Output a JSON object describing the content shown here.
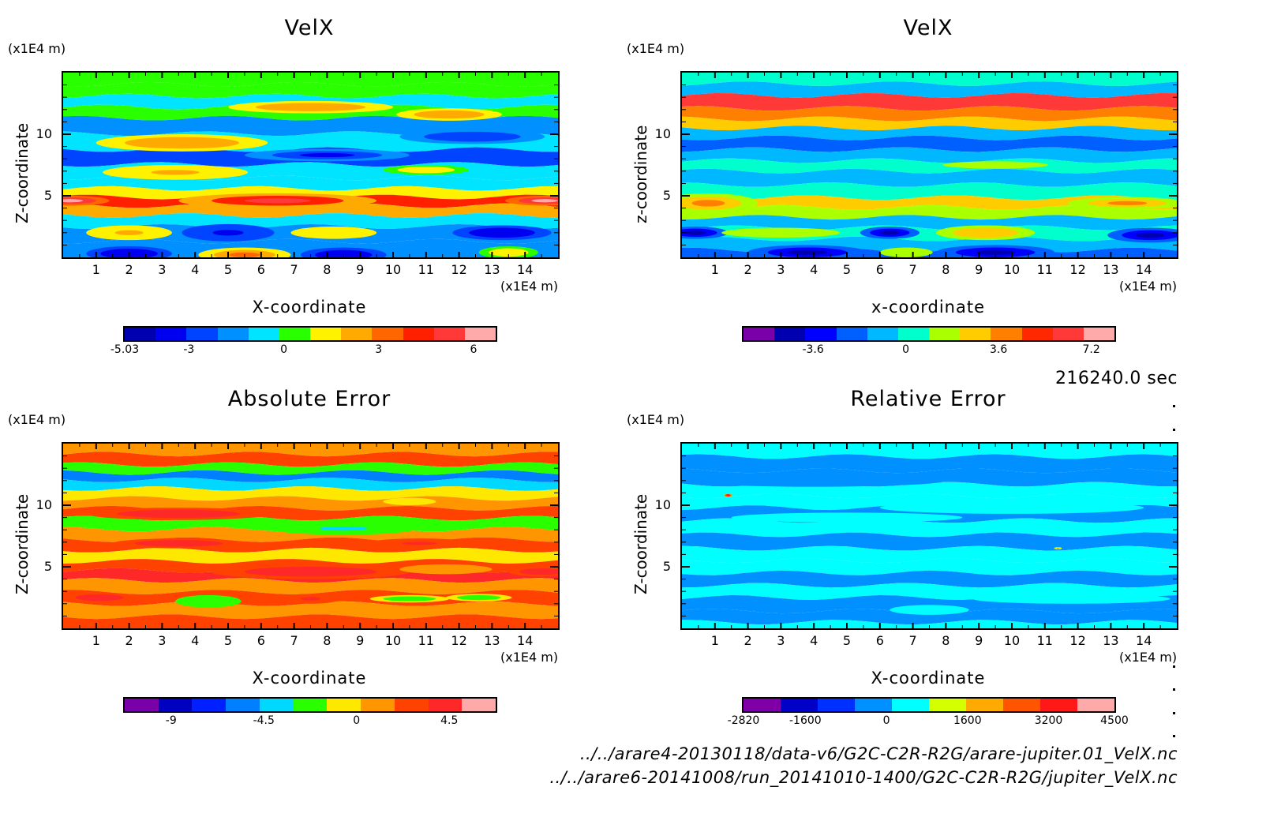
{
  "chart_data": [
    {
      "type": "heatmap",
      "panel": "top-left",
      "title": "VelX",
      "xlabel": "X-coordinate",
      "ylabel": "Z-coordinate",
      "x_unit": "(x1E4 m)",
      "y_unit": "(x1E4 m)",
      "xlim": [
        0,
        15
      ],
      "ylim": [
        0,
        15
      ],
      "x_ticks": [
        "1",
        "2",
        "3",
        "4",
        "5",
        "6",
        "7",
        "8",
        "9",
        "10",
        "11",
        "12",
        "13",
        "14"
      ],
      "y_ticks": [
        "5",
        "10"
      ],
      "colorbar": {
        "colors": [
          "#0000b0",
          "#0000f0",
          "#0044ff",
          "#0090ff",
          "#00e4ff",
          "#2aff00",
          "#fff200",
          "#ffaa00",
          "#ff6600",
          "#ff2000",
          "#ff3838",
          "#ffaaaa"
        ],
        "labels": [
          "-5.03",
          "-3",
          "0",
          "3",
          "6"
        ],
        "range": [
          -5.03,
          6.7
        ]
      },
      "bands": [
        {
          "z": 14.5,
          "v": 0.2
        },
        {
          "z": 13.6,
          "v": 0.6
        },
        {
          "z": 12.6,
          "v": -0.5
        },
        {
          "z": 11.8,
          "v": 0.4
        },
        {
          "z": 10.8,
          "v": -1.2
        },
        {
          "z": 9.3,
          "v": -0.8
        },
        {
          "z": 8.2,
          "v": -2.2
        },
        {
          "z": 6.9,
          "v": -0.4
        },
        {
          "z": 6.0,
          "v": -0.9
        },
        {
          "z": 5.2,
          "v": 1.5
        },
        {
          "z": 4.6,
          "v": 4.2
        },
        {
          "z": 3.8,
          "v": 2.5
        },
        {
          "z": 3.0,
          "v": -0.7
        },
        {
          "z": 2.0,
          "v": -1.4
        },
        {
          "z": 0.6,
          "v": -1.8
        }
      ],
      "blobs": [
        {
          "x": 3.6,
          "z": 9.3,
          "rx": 2.6,
          "rz": 0.7,
          "v": 2.6
        },
        {
          "x": 3.4,
          "z": 6.9,
          "rx": 2.2,
          "rz": 0.6,
          "v": 2.3
        },
        {
          "x": 8.0,
          "z": 8.3,
          "rx": 2.5,
          "rz": 0.5,
          "v": -3.8
        },
        {
          "x": 12.4,
          "z": 9.8,
          "rx": 2.2,
          "rz": 0.6,
          "v": -3.0
        },
        {
          "x": 11.0,
          "z": 7.1,
          "rx": 1.3,
          "rz": 0.4,
          "v": 1.3
        },
        {
          "x": 6.5,
          "z": 4.6,
          "rx": 3.0,
          "rz": 0.6,
          "v": 5.0
        },
        {
          "x": 0.2,
          "z": 4.6,
          "rx": 1.2,
          "rz": 0.4,
          "v": 6.3
        },
        {
          "x": 14.6,
          "z": 4.6,
          "rx": 1.2,
          "rz": 0.4,
          "v": 6.3
        },
        {
          "x": 2.0,
          "z": 2.0,
          "rx": 1.3,
          "rz": 0.6,
          "v": 2.3
        },
        {
          "x": 5.0,
          "z": 2.0,
          "rx": 1.4,
          "rz": 0.7,
          "v": -3.9
        },
        {
          "x": 8.2,
          "z": 2.0,
          "rx": 1.3,
          "rz": 0.5,
          "v": 1.8
        },
        {
          "x": 13.3,
          "z": 2.0,
          "rx": 1.5,
          "rz": 0.6,
          "v": -4.0
        },
        {
          "x": 2.0,
          "z": 0.3,
          "rx": 1.3,
          "rz": 0.6,
          "v": -4.0
        },
        {
          "x": 5.5,
          "z": 0.2,
          "rx": 1.4,
          "rz": 0.6,
          "v": 3.0
        },
        {
          "x": 8.5,
          "z": 0.2,
          "rx": 1.3,
          "rz": 0.6,
          "v": -4.0
        },
        {
          "x": 13.5,
          "z": 0.4,
          "rx": 0.9,
          "rz": 0.5,
          "v": 1.5
        },
        {
          "x": 7.5,
          "z": 12.2,
          "rx": 2.5,
          "rz": 0.5,
          "v": 2.4
        },
        {
          "x": 11.7,
          "z": 11.6,
          "rx": 1.6,
          "rz": 0.5,
          "v": 2.5
        }
      ]
    },
    {
      "type": "heatmap",
      "panel": "top-right",
      "title": "VelX",
      "xlabel": "x-coordinate",
      "ylabel": "z-coordinate",
      "x_unit": "(x1E4 m)",
      "y_unit": "(x1E4 m)",
      "xlim": [
        0,
        15
      ],
      "ylim": [
        0,
        15
      ],
      "x_ticks": [
        "1",
        "2",
        "3",
        "4",
        "5",
        "6",
        "7",
        "8",
        "9",
        "10",
        "11",
        "12",
        "13",
        "14"
      ],
      "y_ticks": [
        "5",
        "10"
      ],
      "colorbar": {
        "colors": [
          "#7a00aa",
          "#0000b0",
          "#0000ff",
          "#0060ff",
          "#00b8ff",
          "#00ffcc",
          "#aaff00",
          "#ffcc00",
          "#ff8000",
          "#ff2800",
          "#ff3838",
          "#ffaaaa"
        ],
        "labels": [
          "-3.6",
          "0",
          "3.6",
          "7.2"
        ],
        "range": [
          -6.3,
          8.1
        ]
      },
      "bands": [
        {
          "z": 14.5,
          "v": 0.3
        },
        {
          "z": 13.7,
          "v": -0.8
        },
        {
          "z": 12.6,
          "v": 6.0
        },
        {
          "z": 11.6,
          "v": 4.0
        },
        {
          "z": 10.9,
          "v": 2.2
        },
        {
          "z": 10.1,
          "v": -0.8
        },
        {
          "z": 9.3,
          "v": -2.0
        },
        {
          "z": 8.2,
          "v": -0.8
        },
        {
          "z": 7.5,
          "v": 0.4
        },
        {
          "z": 6.5,
          "v": -0.9
        },
        {
          "z": 5.3,
          "v": 0.3
        },
        {
          "z": 4.4,
          "v": 2.2
        },
        {
          "z": 3.7,
          "v": 1.5
        },
        {
          "z": 2.8,
          "v": -0.9
        },
        {
          "z": 2.0,
          "v": 0.3
        },
        {
          "z": 1.0,
          "v": -0.8
        },
        {
          "z": 0.2,
          "v": -2.5
        }
      ],
      "blobs": [
        {
          "x": 0.8,
          "z": 4.4,
          "rx": 1.5,
          "rz": 0.8,
          "v": 3.4
        },
        {
          "x": 13.5,
          "z": 4.4,
          "rx": 1.8,
          "rz": 0.5,
          "v": 3.7
        },
        {
          "x": 9.5,
          "z": 7.5,
          "rx": 1.6,
          "rz": 0.3,
          "v": 2.0
        },
        {
          "x": 0.4,
          "z": 2.0,
          "rx": 1.0,
          "rz": 0.5,
          "v": -4.5
        },
        {
          "x": 3.0,
          "z": 2.0,
          "rx": 1.8,
          "rz": 0.4,
          "v": 2.0
        },
        {
          "x": 6.3,
          "z": 2.0,
          "rx": 0.9,
          "rz": 0.5,
          "v": -4.0
        },
        {
          "x": 9.2,
          "z": 2.0,
          "rx": 1.5,
          "rz": 0.6,
          "v": 3.0
        },
        {
          "x": 14.2,
          "z": 1.8,
          "rx": 1.3,
          "rz": 0.6,
          "v": -4.5
        },
        {
          "x": 3.8,
          "z": 0.4,
          "rx": 1.8,
          "rz": 0.6,
          "v": -4.5
        },
        {
          "x": 9.5,
          "z": 0.4,
          "rx": 1.8,
          "rz": 0.6,
          "v": -4.5
        },
        {
          "x": 6.8,
          "z": 0.4,
          "rx": 0.8,
          "rz": 0.4,
          "v": 2.0
        }
      ]
    },
    {
      "type": "heatmap",
      "panel": "bottom-left",
      "title": "Absolute Error",
      "xlabel": "X-coordinate",
      "ylabel": "Z-coordinate",
      "x_unit": "(x1E4 m)",
      "y_unit": "(x1E4 m)",
      "xlim": [
        0,
        15
      ],
      "ylim": [
        0,
        15
      ],
      "x_ticks": [
        "1",
        "2",
        "3",
        "4",
        "5",
        "6",
        "7",
        "8",
        "9",
        "10",
        "11",
        "12",
        "13",
        "14"
      ],
      "y_ticks": [
        "5",
        "10"
      ],
      "colorbar": {
        "colors": [
          "#7a00aa",
          "#0000c0",
          "#0020ff",
          "#0080ff",
          "#00d8ff",
          "#2aff00",
          "#ffe800",
          "#ff9600",
          "#ff4200",
          "#ff2828",
          "#ffaaaa"
        ],
        "labels": [
          "-9",
          "-4.5",
          "0",
          "4.5"
        ],
        "range": [
          -11.25,
          6.75
        ]
      },
      "bands": [
        {
          "z": 14.6,
          "v": 0.5
        },
        {
          "z": 13.7,
          "v": 2.0
        },
        {
          "z": 12.9,
          "v": -1.8
        },
        {
          "z": 12.4,
          "v": -6.0
        },
        {
          "z": 11.7,
          "v": -3.5
        },
        {
          "z": 11.0,
          "v": -0.5
        },
        {
          "z": 10.1,
          "v": 0.5
        },
        {
          "z": 9.4,
          "v": 3.0
        },
        {
          "z": 8.5,
          "v": -1.5
        },
        {
          "z": 7.6,
          "v": 1.0
        },
        {
          "z": 6.8,
          "v": 3.0
        },
        {
          "z": 5.9,
          "v": -1.0
        },
        {
          "z": 5.0,
          "v": 2.5
        },
        {
          "z": 4.4,
          "v": 4.0
        },
        {
          "z": 3.4,
          "v": 1.0
        },
        {
          "z": 2.5,
          "v": 2.2
        },
        {
          "z": 1.5,
          "v": 0.5
        },
        {
          "z": 0.4,
          "v": 3.0
        }
      ],
      "blobs": [
        {
          "x": 3.5,
          "z": 9.3,
          "rx": 2.8,
          "rz": 0.5,
          "v": 4.5
        },
        {
          "x": 8.5,
          "z": 8.1,
          "rx": 2.2,
          "rz": 0.5,
          "v": -3.5
        },
        {
          "x": 3.5,
          "z": 6.9,
          "rx": 2.0,
          "rz": 0.4,
          "v": 4.5
        },
        {
          "x": 10.8,
          "z": 6.9,
          "rx": 1.6,
          "rz": 0.4,
          "v": 4.0
        },
        {
          "x": 7.5,
          "z": 4.6,
          "rx": 3.0,
          "rz": 0.6,
          "v": 5.0
        },
        {
          "x": 14.5,
          "z": 4.6,
          "rx": 1.0,
          "rz": 0.4,
          "v": 5.0
        },
        {
          "x": 11.6,
          "z": 4.8,
          "rx": 1.4,
          "rz": 0.4,
          "v": 1.0
        },
        {
          "x": 4.4,
          "z": 2.2,
          "rx": 1.0,
          "rz": 0.5,
          "v": -3.0
        },
        {
          "x": 7.5,
          "z": 2.4,
          "rx": 0.9,
          "rz": 0.4,
          "v": 4.0
        },
        {
          "x": 10.5,
          "z": 2.4,
          "rx": 1.2,
          "rz": 0.3,
          "v": -2.5
        },
        {
          "x": 12.6,
          "z": 2.5,
          "rx": 1.0,
          "rz": 0.3,
          "v": -2.5
        },
        {
          "x": 1.1,
          "z": 2.5,
          "rx": 1.1,
          "rz": 0.4,
          "v": 4.5
        },
        {
          "x": 10.5,
          "z": 10.3,
          "rx": 0.8,
          "rz": 0.3,
          "v": -0.5
        }
      ]
    },
    {
      "type": "heatmap",
      "panel": "bottom-right",
      "title": "Relative Error",
      "xlabel": "X-coordinate",
      "ylabel": "Z-coordinate",
      "x_unit": "(x1E4 m)",
      "y_unit": "(x1E4 m)",
      "xlim": [
        0,
        15
      ],
      "ylim": [
        0,
        15
      ],
      "x_ticks": [
        "1",
        "2",
        "3",
        "4",
        "5",
        "6",
        "7",
        "8",
        "9",
        "10",
        "11",
        "12",
        "13",
        "14"
      ],
      "y_ticks": [
        "5",
        "10"
      ],
      "colorbar": {
        "colors": [
          "#8000a8",
          "#0000c8",
          "#0030ff",
          "#0090ff",
          "#00ffff",
          "#d4ff00",
          "#ffaa00",
          "#ff5500",
          "#ff1818",
          "#ffaaaa"
        ],
        "labels": [
          "-2820",
          "-1600",
          "0",
          "1600",
          "3200",
          "4500"
        ],
        "range": [
          -2820,
          4500
        ]
      },
      "bands": [
        {
          "z": 14.5,
          "v": 200
        },
        {
          "z": 13.4,
          "v": -300
        },
        {
          "z": 12.2,
          "v": -500
        },
        {
          "z": 11.2,
          "v": 200
        },
        {
          "z": 10.3,
          "v": 200
        },
        {
          "z": 9.3,
          "v": -300
        },
        {
          "z": 8.2,
          "v": 200
        },
        {
          "z": 7.0,
          "v": -300
        },
        {
          "z": 6.0,
          "v": 200
        },
        {
          "z": 5.0,
          "v": 200
        },
        {
          "z": 4.0,
          "v": -300
        },
        {
          "z": 3.0,
          "v": 200
        },
        {
          "z": 2.0,
          "v": -300
        },
        {
          "z": 0.8,
          "v": -300
        },
        {
          "z": 0.2,
          "v": 200
        }
      ],
      "blobs": [
        {
          "x": 4.0,
          "z": 12.0,
          "rx": 4.0,
          "rz": 0.5,
          "v": -400
        },
        {
          "x": 7.0,
          "z": 7.0,
          "rx": 2.8,
          "rz": 0.4,
          "v": -400
        },
        {
          "x": 14.0,
          "z": 9.5,
          "rx": 1.2,
          "rz": 0.5,
          "v": -400
        },
        {
          "x": 11.8,
          "z": 2.4,
          "rx": 3.0,
          "rz": 0.4,
          "v": 300
        },
        {
          "x": 10.0,
          "z": 9.8,
          "rx": 4.0,
          "rz": 0.5,
          "v": 300
        },
        {
          "x": 5.0,
          "z": 9.0,
          "rx": 3.5,
          "rz": 0.4,
          "v": 300
        },
        {
          "x": 7.5,
          "z": 1.5,
          "rx": 1.2,
          "rz": 0.4,
          "v": 300
        },
        {
          "x": 1.4,
          "z": 10.8,
          "rx": 0.15,
          "rz": 0.1,
          "v": 3500
        },
        {
          "x": 11.4,
          "z": 6.5,
          "rx": 0.12,
          "rz": 0.08,
          "v": 2000
        }
      ]
    }
  ],
  "timestamp": "216240.0 sec",
  "footer": {
    "line1": "../../arare4-20130118/data-v6/G2C-C2R-R2G/arare-jupiter.01_VelX.nc",
    "line2": "../../arare6-20141008/run_20141010-1400/G2C-C2R-R2G/jupiter_VelX.nc"
  }
}
